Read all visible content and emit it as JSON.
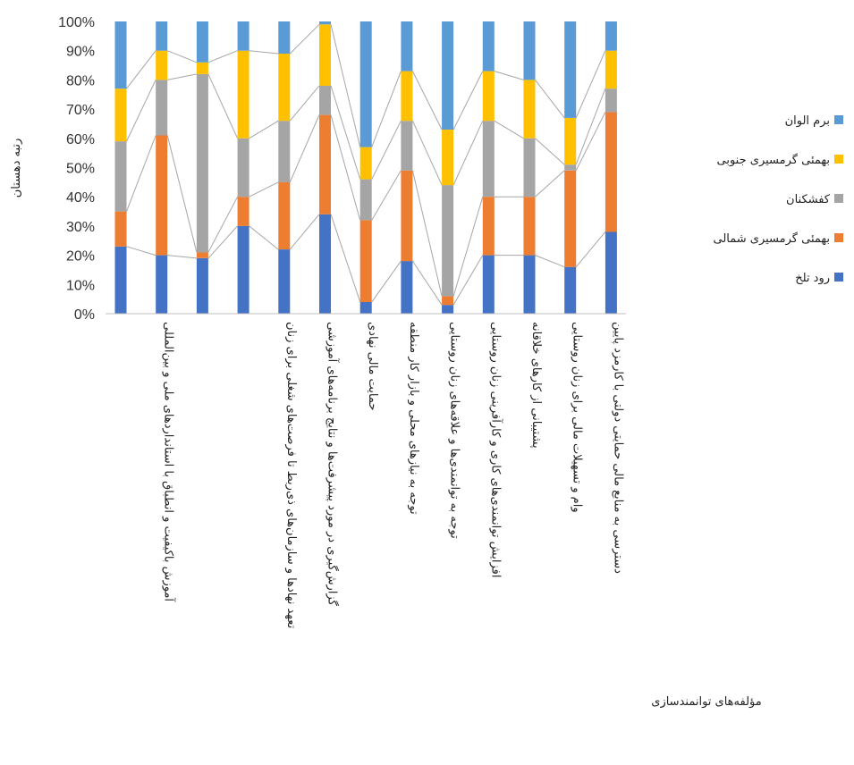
{
  "chart_data": {
    "type": "bar",
    "stacked": "percent",
    "ylabel": "رتبه دهستان",
    "xlabel": "مؤلفه‌های توانمندسازی",
    "legend_position": "right",
    "grid": false,
    "ylim": [
      0,
      100
    ],
    "y_ticks": [
      "0%",
      "10%",
      "20%",
      "30%",
      "40%",
      "50%",
      "60%",
      "70%",
      "80%",
      "90%",
      "100%"
    ],
    "categories": [
      "",
      "آموزش باکیفیت و انطباق با استانداردهای ملی و بین‌المللی",
      "",
      "",
      "تعهد نهادها و سازمان‌های ذی‌ربط تا فرصت‌های شغلی برای زنان",
      "گزارش‌گیری در مورد پیشرفت‌ها و نتایج برنامه‌های آموزشی",
      "حمایت مالی نهادی",
      "توجه به نیازهای محلی و بازار کار منطقه",
      "توجه به توانمندی‌ها و علاقه‌های زنان روستایی",
      "افزایش توانمندی‌های کاری و کارآفرینی زنان روستایی",
      "پشتیبانی از کارهای خلاقانه",
      "وام و تسهیلات مالی برای زنان روستایی",
      "دسترسی به منابع مالی حمایتی دولتی با کارمزد پایین"
    ],
    "series": [
      {
        "name": "رود تلخ",
        "color": "#4472C4",
        "values": [
          23,
          20,
          19,
          30,
          22,
          34,
          4,
          18,
          3,
          20,
          20,
          16,
          28
        ]
      },
      {
        "name": "بهمئی گرمسیری شمالی",
        "color": "#ED7D31",
        "values": [
          12,
          41,
          2,
          10,
          23,
          34,
          28,
          31,
          3,
          20,
          20,
          33,
          41
        ]
      },
      {
        "name": "کفشکنان",
        "color": "#A5A5A5",
        "values": [
          24,
          19,
          61,
          20,
          21,
          10,
          14,
          17,
          38,
          26,
          20,
          2,
          8
        ]
      },
      {
        "name": "بهمئی گرمسیری جنوبی",
        "color": "#FFC000",
        "values": [
          18,
          10,
          4,
          30,
          23,
          21,
          11,
          17,
          19,
          17,
          20,
          16,
          13
        ]
      },
      {
        "name": "برم الوان",
        "color": "#5B9BD5",
        "values": [
          23,
          10,
          14,
          10,
          11,
          1,
          43,
          17,
          37,
          17,
          20,
          33,
          10
        ]
      }
    ]
  }
}
